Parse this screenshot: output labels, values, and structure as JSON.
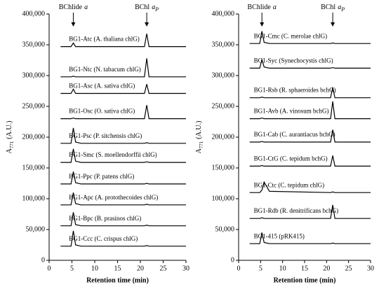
{
  "chart_data": [
    {
      "type": "line",
      "xlabel": "Retention time (min)",
      "ylabel": {
        "main": "A",
        "sub": "771",
        "unit": "(A.U.)"
      },
      "annotations": [
        {
          "text": "BChlide",
          "italic": "a",
          "x": 5.3
        },
        {
          "text": "BChl",
          "italic": "a",
          "sub": "P",
          "x": 21.4
        }
      ],
      "xlim": [
        0,
        30
      ],
      "xticks": [
        0,
        5,
        10,
        15,
        20,
        25,
        30
      ],
      "ylim": [
        0,
        400000
      ],
      "yticks": [
        0,
        {
          "value": 50000,
          "label": "50,000"
        },
        {
          "value": 100000,
          "label": "100,000"
        },
        {
          "value": 150000,
          "label": "150,000"
        },
        {
          "value": 200000,
          "label": "200,000"
        },
        {
          "value": 250000,
          "label": "250,000"
        },
        {
          "value": 300000,
          "label": "300,000"
        },
        {
          "value": 350000,
          "label": "350,000"
        },
        {
          "value": 400000,
          "label": "400,000"
        }
      ],
      "color": "#000000",
      "grid": false,
      "x": [
        2.5,
        4.8,
        5.3,
        5.8,
        7,
        20.9,
        21.4,
        21.9,
        30
      ],
      "series": [
        {
          "name": "BG1-Atc (A. thaliana chlG)",
          "values": [
            347000,
            347000,
            353000,
            347000,
            347000,
            347000,
            368000,
            347000,
            347000
          ]
        },
        {
          "name": "BG1-Ntc (N. tabacum chlG)",
          "values": [
            298000,
            298000,
            299000,
            298000,
            298000,
            298000,
            328000,
            298000,
            298000
          ]
        },
        {
          "name": "BG1-Asc (A. sativa chlG)",
          "values": [
            271000,
            271000,
            278000,
            271000,
            271000,
            271000,
            286000,
            271000,
            271000
          ]
        },
        {
          "name": "BG1-Osc (O. sativa chlG)",
          "values": [
            230000,
            230000,
            231000,
            230000,
            230000,
            230000,
            252000,
            230000,
            230000
          ]
        },
        {
          "name": "BG1-Psc (P. sitchensis chlG)",
          "values": [
            190000,
            190000,
            215000,
            192000,
            190000,
            190000,
            191000,
            190000,
            190000
          ]
        },
        {
          "name": "BG1-Smc (S. moellendorffii chlG)",
          "values": [
            159000,
            159000,
            181000,
            161000,
            159000,
            159000,
            160000,
            159000,
            159000
          ]
        },
        {
          "name": "BG1-Ppc (P. patens chlG)",
          "values": [
            124000,
            124000,
            144000,
            126000,
            124000,
            124000,
            125000,
            124000,
            124000
          ]
        },
        {
          "name": "BG1-Apc (A. protothecoides chlG)",
          "values": [
            90000,
            90000,
            110000,
            92000,
            90000,
            90000,
            91000,
            90000,
            90000
          ]
        },
        {
          "name": "BG1-Bpc (B. prasinos chlG)",
          "values": [
            56000,
            56000,
            78000,
            58000,
            56000,
            56000,
            57000,
            56000,
            56000
          ]
        },
        {
          "name": "BG1-Ccc (C. crispus chlG)",
          "values": [
            23000,
            23000,
            48000,
            25000,
            23000,
            23000,
            24000,
            23000,
            23000
          ]
        }
      ]
    },
    {
      "type": "line",
      "xlabel": "Retention time (min)",
      "ylabel": {
        "main": "A",
        "sub": "771",
        "unit": "(A.U.)"
      },
      "annotations": [
        {
          "text": "BChlide",
          "italic": "a",
          "x": 5.3
        },
        {
          "text": "BChl",
          "italic": "a",
          "sub": "P",
          "x": 21.4
        }
      ],
      "xlim": [
        0,
        30
      ],
      "xticks": [
        0,
        5,
        10,
        15,
        20,
        25,
        30
      ],
      "ylim": [
        0,
        400000
      ],
      "yticks": [
        0,
        {
          "value": 50000,
          "label": "50,000"
        },
        {
          "value": 100000,
          "label": "100,000"
        },
        {
          "value": 150000,
          "label": "150,000"
        },
        {
          "value": 200000,
          "label": "200,000"
        },
        {
          "value": 250000,
          "label": "250,000"
        },
        {
          "value": 300000,
          "label": "300,000"
        },
        {
          "value": 350000,
          "label": "350,000"
        },
        {
          "value": 400000,
          "label": "400,000"
        }
      ],
      "color": "#000000",
      "grid": false,
      "x": [
        2.5,
        4.8,
        5.3,
        5.8,
        7,
        20.9,
        21.4,
        21.9,
        30
      ],
      "series": [
        {
          "name": "BG1-Cmc (C. merolae chlG)",
          "values": [
            352000,
            352000,
            372000,
            354000,
            352000,
            352000,
            353000,
            352000,
            352000
          ]
        },
        {
          "name": "BG1-Syc (Synechocystis chlG)",
          "values": [
            312000,
            312000,
            326000,
            314000,
            312000,
            312000,
            313000,
            312000,
            312000
          ]
        },
        {
          "name": "BG1-Rsb (R. sphaeroides bchG)",
          "values": [
            264000,
            264000,
            265000,
            264000,
            264000,
            264000,
            281000,
            264000,
            264000
          ]
        },
        {
          "name": "BG1-Avb (A. vinosum bchG)",
          "values": [
            230000,
            230000,
            231000,
            230000,
            230000,
            230000,
            258000,
            230000,
            230000
          ]
        },
        {
          "name": "BG1-Cab (C. aurantiacus bchG)",
          "values": [
            192000,
            192000,
            193000,
            192000,
            192000,
            192000,
            212000,
            192000,
            192000
          ]
        },
        {
          "name": "BG1-CtG (C. tepidum bchG)",
          "values": [
            153000,
            153000,
            154000,
            153000,
            153000,
            153000,
            170000,
            153000,
            153000
          ]
        },
        {
          "name": "BG1-Ctc (C. tepidum chlG)",
          "values": [
            110000,
            110000,
            114000,
            127000,
            112000,
            110000,
            111000,
            110000,
            110000
          ]
        },
        {
          "name": "BG1-Rdb (R. denitrificans bchG)",
          "values": [
            68000,
            68000,
            69000,
            68000,
            68000,
            68000,
            90000,
            68000,
            68000
          ]
        },
        {
          "name": "BG1-415 (pRK415)",
          "values": [
            27000,
            27000,
            45000,
            29000,
            27000,
            27000,
            28000,
            27000,
            27000
          ]
        }
      ]
    }
  ]
}
